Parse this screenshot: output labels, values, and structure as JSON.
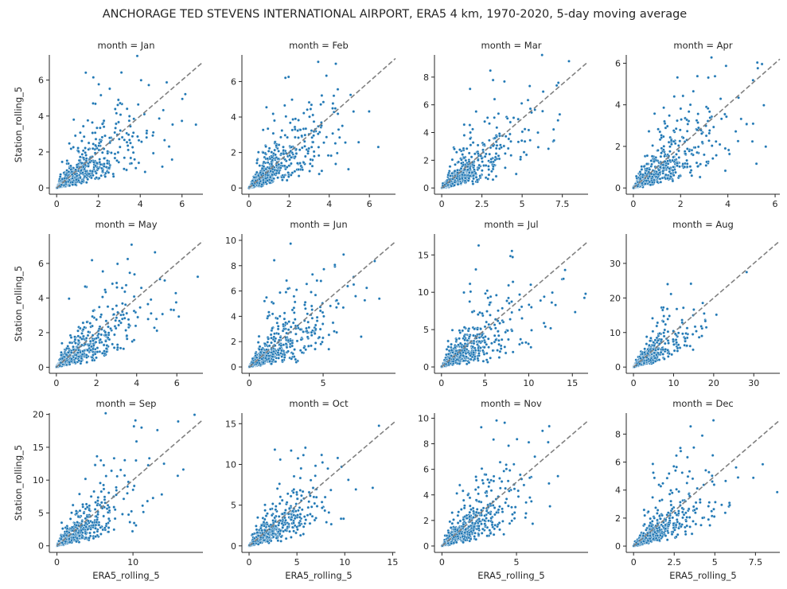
{
  "title": "ANCHORAGE TED STEVENS INTERNATIONAL AIRPORT, ERA5 4 km, 1970-2020, 5-day moving average",
  "xlabel": "ERA5_rolling_5",
  "ylabel": "Station_rolling_5",
  "colors": {
    "points": "#1f77b4",
    "point_edge": "#ffffff",
    "reference_line": "#808080",
    "axes": "#262626"
  },
  "chart_data": [
    {
      "type": "scatter",
      "title": "month = Jan",
      "xlim": [
        -0.35,
        7.0
      ],
      "ylim": [
        -0.35,
        7.4
      ],
      "xticks": [
        0,
        2,
        4,
        6
      ],
      "yticks": [
        0,
        2,
        4,
        6
      ],
      "n_points": 650,
      "shape": 1.4,
      "spread": 0.55,
      "seed": 11,
      "reference_line": "y = x"
    },
    {
      "type": "scatter",
      "title": "month = Feb",
      "xlim": [
        -0.35,
        7.3
      ],
      "ylim": [
        -0.35,
        7.5
      ],
      "xticks": [
        0,
        2,
        4,
        6
      ],
      "yticks": [
        0,
        2,
        4,
        6
      ],
      "n_points": 650,
      "shape": 1.3,
      "spread": 0.5,
      "seed": 23,
      "reference_line": "y = x"
    },
    {
      "type": "scatter",
      "title": "month = Mar",
      "xlim": [
        -0.45,
        9.1
      ],
      "ylim": [
        -0.45,
        9.6
      ],
      "xticks": [
        0,
        2.5,
        5.0,
        7.5
      ],
      "yticks": [
        0,
        2,
        4,
        6,
        8
      ],
      "n_points": 650,
      "shape": 1.6,
      "spread": 0.5,
      "seed": 37,
      "reference_line": "y = x"
    },
    {
      "type": "scatter",
      "title": "month = Apr",
      "xlim": [
        -0.3,
        6.2
      ],
      "ylim": [
        -0.3,
        6.4
      ],
      "xticks": [
        0,
        2,
        4,
        6
      ],
      "yticks": [
        0,
        2,
        4,
        6
      ],
      "n_points": 650,
      "shape": 1.3,
      "spread": 0.55,
      "seed": 41,
      "reference_line": "y = x"
    },
    {
      "type": "scatter",
      "title": "month = May",
      "xlim": [
        -0.35,
        7.3
      ],
      "ylim": [
        -0.35,
        7.7
      ],
      "xticks": [
        0,
        2,
        4,
        6
      ],
      "yticks": [
        0,
        2,
        4,
        6
      ],
      "n_points": 650,
      "shape": 1.4,
      "spread": 0.5,
      "seed": 53,
      "reference_line": "y = x"
    },
    {
      "type": "scatter",
      "title": "month = Jun",
      "xlim": [
        -0.5,
        9.9
      ],
      "ylim": [
        -0.5,
        10.5
      ],
      "xticks": [
        0,
        5
      ],
      "yticks": [
        0,
        2,
        4,
        6,
        8,
        10
      ],
      "n_points": 650,
      "shape": 1.8,
      "spread": 0.5,
      "seed": 67,
      "reference_line": "y = x"
    },
    {
      "type": "scatter",
      "title": "month = Jul",
      "xlim": [
        -0.8,
        16.8
      ],
      "ylim": [
        -0.85,
        17.8
      ],
      "xticks": [
        0,
        5,
        10,
        15
      ],
      "yticks": [
        0,
        5,
        10,
        15
      ],
      "n_points": 650,
      "shape": 3.0,
      "spread": 0.5,
      "seed": 71,
      "reference_line": "y = x"
    },
    {
      "type": "scatter",
      "title": "month = Aug",
      "xlim": [
        -1.8,
        36.5
      ],
      "ylim": [
        -1.8,
        38.5
      ],
      "xticks": [
        0,
        10,
        20,
        30
      ],
      "yticks": [
        0,
        10,
        20,
        30
      ],
      "n_points": 650,
      "shape": 4.5,
      "spread": 0.4,
      "seed": 83,
      "reference_line": "y = x"
    },
    {
      "type": "scatter",
      "title": "month = Sep",
      "xlim": [
        -1.0,
        19.2
      ],
      "ylim": [
        -1.0,
        20.2
      ],
      "xticks": [
        0,
        10
      ],
      "yticks": [
        0,
        5,
        10,
        15,
        20
      ],
      "n_points": 650,
      "shape": 3.2,
      "spread": 0.45,
      "seed": 97,
      "reference_line": "y = x"
    },
    {
      "type": "scatter",
      "title": "month = Oct",
      "xlim": [
        -0.75,
        15.3
      ],
      "ylim": [
        -0.8,
        16.3
      ],
      "xticks": [
        0,
        5,
        10,
        15
      ],
      "yticks": [
        0,
        5,
        10,
        15
      ],
      "n_points": 650,
      "shape": 2.5,
      "spread": 0.45,
      "seed": 103,
      "reference_line": "y = x"
    },
    {
      "type": "scatter",
      "title": "month = Nov",
      "xlim": [
        -0.5,
        9.8
      ],
      "ylim": [
        -0.5,
        10.4
      ],
      "xticks": [
        0,
        5
      ],
      "yticks": [
        0,
        2,
        4,
        6,
        8,
        10
      ],
      "n_points": 650,
      "shape": 1.8,
      "spread": 0.45,
      "seed": 113,
      "reference_line": "y = x"
    },
    {
      "type": "scatter",
      "title": "month = Dec",
      "xlim": [
        -0.45,
        9.0
      ],
      "ylim": [
        -0.45,
        9.5
      ],
      "xticks": [
        0,
        2.5,
        5.0,
        7.5
      ],
      "yticks": [
        0,
        2,
        4,
        6,
        8
      ],
      "n_points": 650,
      "shape": 1.6,
      "spread": 0.45,
      "seed": 127,
      "reference_line": "y = x"
    }
  ]
}
